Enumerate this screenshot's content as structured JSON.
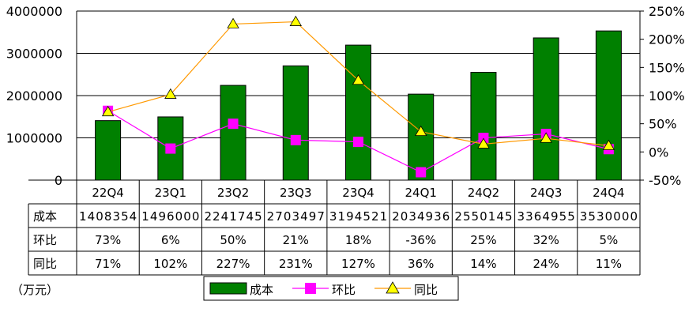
{
  "chart_data": {
    "type": "bar",
    "categories": [
      "22Q4",
      "23Q1",
      "23Q2",
      "23Q3",
      "23Q4",
      "24Q1",
      "24Q2",
      "24Q3",
      "24Q4"
    ],
    "series": [
      {
        "name": "成本",
        "type": "bar",
        "axis": "left",
        "color": "#008000",
        "values": [
          1408354,
          1496000,
          2241745,
          2703497,
          3194521,
          2034936,
          2550145,
          3364955,
          3530000
        ]
      },
      {
        "name": "环比",
        "type": "line",
        "axis": "right",
        "color": "#ff00ff",
        "marker": "square",
        "values": [
          73,
          6,
          50,
          21,
          18,
          -36,
          25,
          32,
          5
        ]
      },
      {
        "name": "同比",
        "type": "line",
        "axis": "right",
        "color": "#ff9900",
        "marker": "triangle",
        "marker_color": "#ffff00",
        "values": [
          71,
          102,
          227,
          231,
          127,
          36,
          14,
          24,
          11
        ]
      }
    ],
    "y_left": {
      "min": 0,
      "max": 4000000,
      "ticks": [
        "0",
        "1000000",
        "2000000",
        "3000000",
        "4000000"
      ]
    },
    "y_right": {
      "min": -50,
      "max": 250,
      "ticks": [
        "-50%",
        "0%",
        "50%",
        "100%",
        "150%",
        "200%",
        "250%"
      ]
    },
    "table": {
      "rows": [
        {
          "label": "成本",
          "cells": [
            "1408354",
            "1496000",
            "2241745",
            "2703497",
            "3194521",
            "2034936",
            "2550145",
            "3364955",
            "3530000"
          ]
        },
        {
          "label": "环比",
          "cells": [
            "73%",
            "6%",
            "50%",
            "21%",
            "18%",
            "-36%",
            "25%",
            "32%",
            "5%"
          ]
        },
        {
          "label": "同比",
          "cells": [
            "71%",
            "102%",
            "227%",
            "231%",
            "127%",
            "36%",
            "14%",
            "24%",
            "11%"
          ]
        }
      ]
    },
    "unit_label": "（万元）",
    "grid": true,
    "legend_position": "bottom"
  }
}
